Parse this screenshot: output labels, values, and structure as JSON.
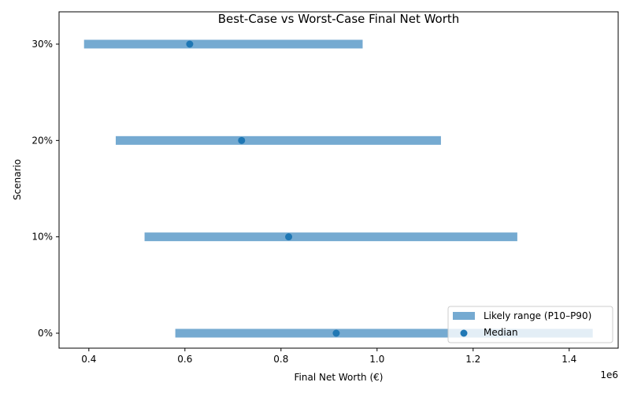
{
  "chart_data": {
    "type": "range-dot",
    "title": "Best-Case vs Worst-Case Final Net Worth",
    "xlabel": "Final Net Worth (€)",
    "ylabel": "Scenario",
    "x_offset_label": "1e6",
    "xlim": [
      0.338,
      1.502
    ],
    "x_ticks": [
      0.4,
      0.6,
      0.8,
      1.0,
      1.2,
      1.4
    ],
    "x_tick_labels": [
      "0.4",
      "0.6",
      "0.8",
      "1.0",
      "1.2",
      "1.4"
    ],
    "categories": [
      "0%",
      "10%",
      "20%",
      "30%"
    ],
    "p10": [
      0.58,
      0.516,
      0.456,
      0.39
    ],
    "p90": [
      1.449,
      1.292,
      1.133,
      0.97
    ],
    "median": [
      0.915,
      0.816,
      0.718,
      0.61
    ],
    "grid": false,
    "legend": {
      "placement": "lower-right",
      "entries": [
        "Likely range (P10–P90)",
        "Median"
      ]
    },
    "colors": {
      "range": "#75aad1",
      "median": "#1f77b4"
    }
  }
}
